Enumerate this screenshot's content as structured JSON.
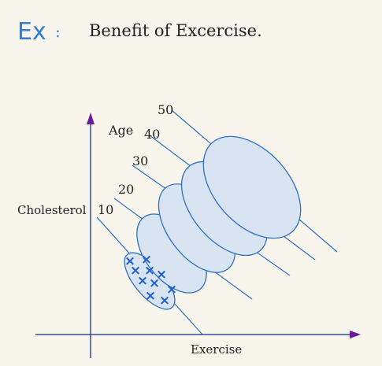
{
  "title": {
    "prefix": "Ex",
    "colon": ":",
    "text": "Benefit of Excercise."
  },
  "axes": {
    "x_label": "Exercise",
    "y_label": "Cholesterol",
    "group_label": "Age"
  },
  "age_groups": [
    "10",
    "20",
    "30",
    "40",
    "50"
  ],
  "colors": {
    "background": "#f8f6ec",
    "axis": "#2f4f8f",
    "arrowhead": "#6a1b9a",
    "ellipse_fill": "#d9e4f3",
    "ellipse_stroke": "#2f6fc4",
    "title_prefix": "#2f7fd8",
    "marker": "#1f5fd0"
  },
  "marker_symbol": "×"
}
